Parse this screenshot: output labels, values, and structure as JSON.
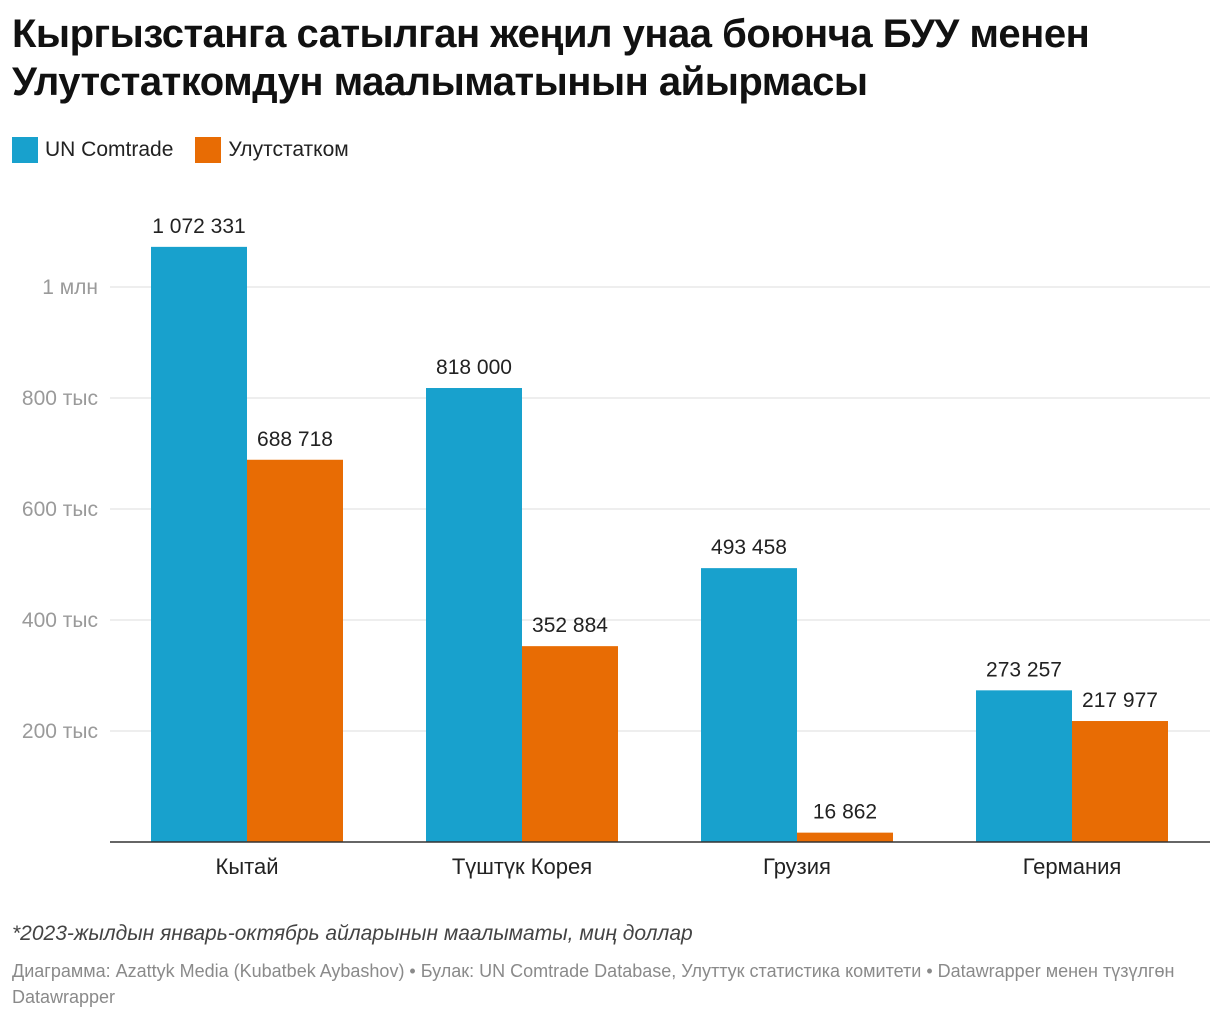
{
  "title": "Кыргызстанга сатылган жеңил унаа боюнча БУУ менен Улутстаткомдун маалыматынын айырмасы",
  "legend": [
    {
      "label": "UN Comtrade",
      "color": "#18a1cd"
    },
    {
      "label": "Улутстатком",
      "color": "#e86c04"
    }
  ],
  "chart_data": {
    "type": "bar",
    "categories": [
      "Кытай",
      "Түштүк Корея",
      "Грузия",
      "Германия"
    ],
    "series": [
      {
        "name": "UN Comtrade",
        "color": "#18a1cd",
        "values": [
          1072331,
          818000,
          493458,
          273257
        ],
        "labels": [
          "1 072 331",
          "818 000",
          "493 458",
          "273 257"
        ]
      },
      {
        "name": "Улутстатком",
        "color": "#e86c04",
        "values": [
          688718,
          352884,
          16862,
          217977
        ],
        "labels": [
          "688 718",
          "352 884",
          "16 862",
          "217 977"
        ]
      }
    ],
    "yticks": [
      {
        "value": 200000,
        "label": "200 тыс"
      },
      {
        "value": 400000,
        "label": "400 тыс"
      },
      {
        "value": 600000,
        "label": "600 тыс"
      },
      {
        "value": 800000,
        "label": "800 тыс"
      },
      {
        "value": 1000000,
        "label": "1 млн"
      }
    ],
    "ylim": [
      0,
      1000000
    ],
    "xlabel": "",
    "ylabel": "",
    "grid": true,
    "legend_position": "top-left"
  },
  "footer": {
    "note": "*2023-жылдын январь-октябрь айларынын маалыматы, миң доллар",
    "credits": "Диаграмма: Azattyk Media (Kubatbek Aybashov) • Булак: UN Comtrade Database, Улуттук статистика комитети • Datawrapper менен түзүлгөн Datawrapper"
  }
}
